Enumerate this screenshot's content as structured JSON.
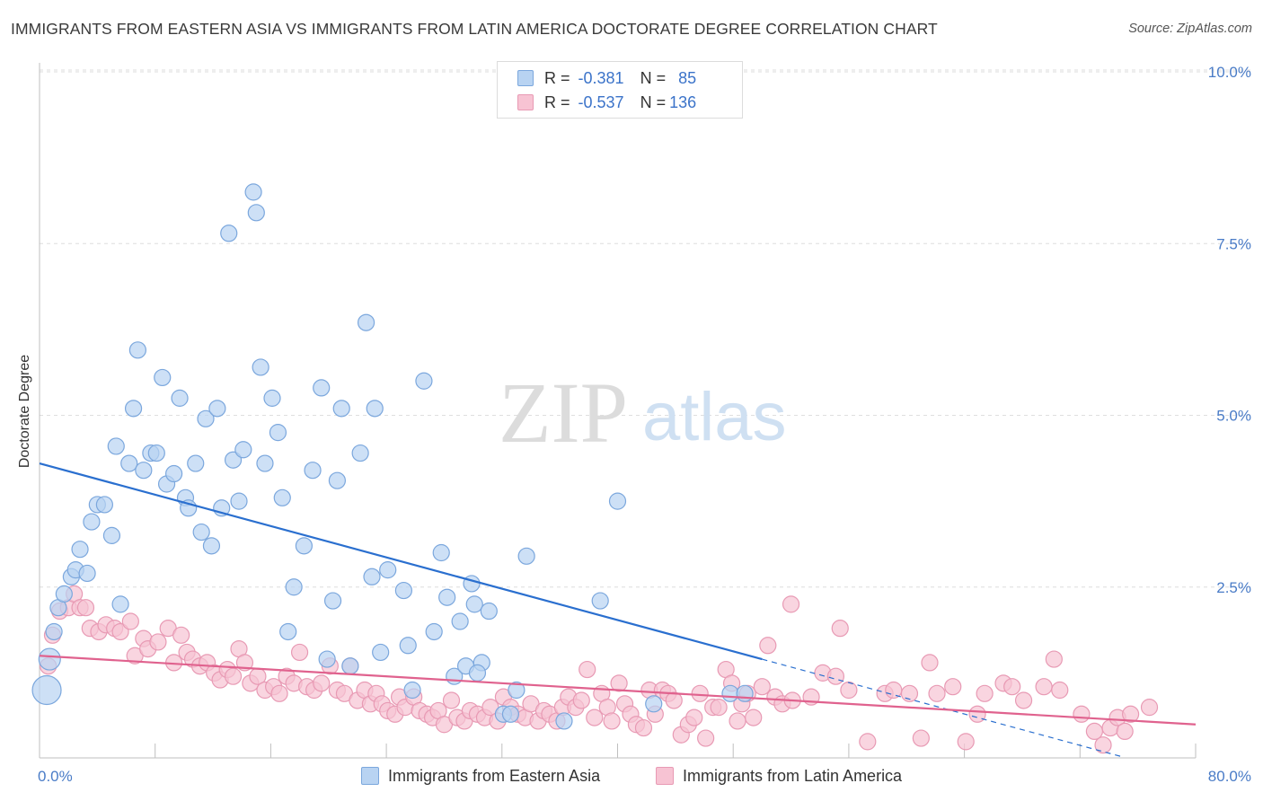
{
  "header": {
    "title": "IMMIGRANTS FROM EASTERN ASIA VS IMMIGRANTS FROM LATIN AMERICA DOCTORATE DEGREE CORRELATION CHART",
    "source": "Source: ZipAtlas.com"
  },
  "watermark": {
    "zip": "ZIP",
    "atlas": "atlas"
  },
  "legend": {
    "series": [
      {
        "r_label": "R =",
        "r_value": "-0.381",
        "n_label": "N =",
        "n_value": "85"
      },
      {
        "r_label": "R =",
        "r_value": "-0.537",
        "n_label": "N =",
        "n_value": "136"
      }
    ]
  },
  "bottom_legend": {
    "asia": "Immigrants from Eastern Asia",
    "latin": "Immigrants from Latin America"
  },
  "colors": {
    "asia_fill": "#b8d3f2",
    "asia_stroke": "#7ba7dd",
    "asia_line": "#2a6fcf",
    "latin_fill": "#f7c3d3",
    "latin_stroke": "#e89ab4",
    "latin_line": "#e0628e",
    "tick_text": "#4a7cc7",
    "grid": "#dedede"
  },
  "chart_data": {
    "type": "scatter",
    "title": "IMMIGRANTS FROM EASTERN ASIA VS IMMIGRANTS FROM LATIN AMERICA DOCTORATE DEGREE CORRELATION CHART",
    "ylabel": "Doctorate Degree",
    "xlim": [
      0,
      80
    ],
    "ylim": [
      0,
      10.5
    ],
    "x_tick_labels": [
      {
        "x": 0,
        "label": "0.0%"
      },
      {
        "x": 80,
        "label": "80.0%"
      }
    ],
    "y_tick_labels": [
      {
        "y": 2.5,
        "label": "2.5%"
      },
      {
        "y": 5.0,
        "label": "5.0%"
      },
      {
        "y": 7.5,
        "label": "7.5%"
      },
      {
        "y": 10.0,
        "label": "10.0%"
      }
    ],
    "grid": true,
    "series": [
      {
        "name": "Immigrants from Eastern Asia",
        "trend": {
          "x0": 0,
          "y0": 4.3,
          "x1": 50,
          "y1": 1.45,
          "dash_to_x": 75
        },
        "points": [
          [
            0.5,
            1.0
          ],
          [
            0.7,
            1.45
          ],
          [
            1.0,
            1.85
          ],
          [
            1.3,
            2.2
          ],
          [
            1.7,
            2.4
          ],
          [
            2.2,
            2.65
          ],
          [
            2.5,
            2.75
          ],
          [
            2.8,
            3.05
          ],
          [
            3.3,
            2.7
          ],
          [
            3.6,
            3.45
          ],
          [
            4.0,
            3.7
          ],
          [
            4.5,
            3.7
          ],
          [
            5.0,
            3.25
          ],
          [
            5.3,
            4.55
          ],
          [
            5.6,
            2.25
          ],
          [
            6.2,
            4.3
          ],
          [
            6.5,
            5.1
          ],
          [
            6.8,
            5.95
          ],
          [
            7.2,
            4.2
          ],
          [
            7.7,
            4.45
          ],
          [
            8.1,
            4.45
          ],
          [
            8.5,
            5.55
          ],
          [
            8.8,
            4.0
          ],
          [
            9.3,
            4.15
          ],
          [
            9.7,
            5.25
          ],
          [
            10.1,
            3.8
          ],
          [
            10.3,
            3.65
          ],
          [
            10.8,
            4.3
          ],
          [
            11.2,
            3.3
          ],
          [
            11.5,
            4.95
          ],
          [
            11.9,
            3.1
          ],
          [
            12.3,
            5.1
          ],
          [
            12.6,
            3.65
          ],
          [
            13.1,
            7.65
          ],
          [
            13.4,
            4.35
          ],
          [
            13.8,
            3.75
          ],
          [
            14.1,
            4.5
          ],
          [
            14.8,
            8.25
          ],
          [
            15.0,
            7.95
          ],
          [
            15.3,
            5.7
          ],
          [
            15.6,
            4.3
          ],
          [
            16.1,
            5.25
          ],
          [
            16.5,
            4.75
          ],
          [
            16.8,
            3.8
          ],
          [
            17.2,
            1.85
          ],
          [
            17.6,
            2.5
          ],
          [
            18.3,
            3.1
          ],
          [
            18.9,
            4.2
          ],
          [
            19.5,
            5.4
          ],
          [
            19.9,
            1.45
          ],
          [
            20.3,
            2.3
          ],
          [
            20.6,
            4.05
          ],
          [
            20.9,
            5.1
          ],
          [
            21.5,
            1.35
          ],
          [
            22.2,
            4.45
          ],
          [
            22.6,
            6.35
          ],
          [
            23.0,
            2.65
          ],
          [
            23.2,
            5.1
          ],
          [
            23.6,
            1.55
          ],
          [
            24.1,
            2.75
          ],
          [
            25.2,
            2.45
          ],
          [
            25.5,
            1.65
          ],
          [
            25.8,
            1.0
          ],
          [
            26.6,
            5.5
          ],
          [
            27.3,
            1.85
          ],
          [
            27.8,
            3.0
          ],
          [
            28.2,
            2.35
          ],
          [
            28.7,
            1.2
          ],
          [
            29.1,
            2.0
          ],
          [
            29.5,
            1.35
          ],
          [
            29.9,
            2.55
          ],
          [
            30.1,
            2.25
          ],
          [
            30.6,
            1.4
          ],
          [
            31.1,
            2.15
          ],
          [
            32.1,
            0.65
          ],
          [
            32.6,
            0.65
          ],
          [
            33.0,
            1.0
          ],
          [
            33.7,
            2.95
          ],
          [
            36.3,
            0.55
          ],
          [
            38.8,
            2.3
          ],
          [
            40.0,
            3.75
          ],
          [
            42.5,
            0.8
          ],
          [
            47.8,
            0.95
          ],
          [
            48.8,
            0.95
          ],
          [
            30.3,
            1.25
          ]
        ]
      },
      {
        "name": "Immigrants from Latin America",
        "trend": {
          "x0": 0,
          "y0": 1.5,
          "x1": 80,
          "y1": 0.5
        },
        "points": [
          [
            0.6,
            1.35
          ],
          [
            0.9,
            1.8
          ],
          [
            1.4,
            2.15
          ],
          [
            2.0,
            2.2
          ],
          [
            2.4,
            2.4
          ],
          [
            2.8,
            2.2
          ],
          [
            3.2,
            2.2
          ],
          [
            3.5,
            1.9
          ],
          [
            4.1,
            1.85
          ],
          [
            4.6,
            1.95
          ],
          [
            5.2,
            1.9
          ],
          [
            5.6,
            1.85
          ],
          [
            6.3,
            2.0
          ],
          [
            6.6,
            1.5
          ],
          [
            7.2,
            1.75
          ],
          [
            7.5,
            1.6
          ],
          [
            8.2,
            1.7
          ],
          [
            8.9,
            1.9
          ],
          [
            9.3,
            1.4
          ],
          [
            9.8,
            1.8
          ],
          [
            10.2,
            1.55
          ],
          [
            10.6,
            1.45
          ],
          [
            11.1,
            1.35
          ],
          [
            11.6,
            1.4
          ],
          [
            12.1,
            1.25
          ],
          [
            12.5,
            1.15
          ],
          [
            13.0,
            1.3
          ],
          [
            13.4,
            1.2
          ],
          [
            13.8,
            1.6
          ],
          [
            14.2,
            1.4
          ],
          [
            14.6,
            1.1
          ],
          [
            15.1,
            1.2
          ],
          [
            15.6,
            1.0
          ],
          [
            16.2,
            1.05
          ],
          [
            16.6,
            0.95
          ],
          [
            17.1,
            1.2
          ],
          [
            17.6,
            1.1
          ],
          [
            18.0,
            1.55
          ],
          [
            18.5,
            1.05
          ],
          [
            19.0,
            1.0
          ],
          [
            19.5,
            1.1
          ],
          [
            20.1,
            1.35
          ],
          [
            20.6,
            1.0
          ],
          [
            21.1,
            0.95
          ],
          [
            21.5,
            1.35
          ],
          [
            22.0,
            0.85
          ],
          [
            22.5,
            1.0
          ],
          [
            22.9,
            0.8
          ],
          [
            23.3,
            0.95
          ],
          [
            23.7,
            0.8
          ],
          [
            24.1,
            0.7
          ],
          [
            24.6,
            0.65
          ],
          [
            24.9,
            0.9
          ],
          [
            25.3,
            0.75
          ],
          [
            25.9,
            0.9
          ],
          [
            26.3,
            0.7
          ],
          [
            26.8,
            0.65
          ],
          [
            27.2,
            0.6
          ],
          [
            27.6,
            0.7
          ],
          [
            28.0,
            0.5
          ],
          [
            28.5,
            0.85
          ],
          [
            28.9,
            0.6
          ],
          [
            29.4,
            0.55
          ],
          [
            29.8,
            0.7
          ],
          [
            30.3,
            0.65
          ],
          [
            30.8,
            0.6
          ],
          [
            31.2,
            0.75
          ],
          [
            31.7,
            0.55
          ],
          [
            32.1,
            0.9
          ],
          [
            32.6,
            0.75
          ],
          [
            33.1,
            0.65
          ],
          [
            33.6,
            0.6
          ],
          [
            34.0,
            0.8
          ],
          [
            34.5,
            0.55
          ],
          [
            34.9,
            0.7
          ],
          [
            35.3,
            0.65
          ],
          [
            35.8,
            0.55
          ],
          [
            36.2,
            0.75
          ],
          [
            36.6,
            0.9
          ],
          [
            37.1,
            0.75
          ],
          [
            37.5,
            0.85
          ],
          [
            37.9,
            1.3
          ],
          [
            38.4,
            0.6
          ],
          [
            38.9,
            0.95
          ],
          [
            39.3,
            0.75
          ],
          [
            39.6,
            0.55
          ],
          [
            40.1,
            1.1
          ],
          [
            40.5,
            0.8
          ],
          [
            40.9,
            0.65
          ],
          [
            41.3,
            0.5
          ],
          [
            41.8,
            0.45
          ],
          [
            42.2,
            1.0
          ],
          [
            42.6,
            0.65
          ],
          [
            43.1,
            1.0
          ],
          [
            43.5,
            0.95
          ],
          [
            43.9,
            0.85
          ],
          [
            44.4,
            0.35
          ],
          [
            44.9,
            0.5
          ],
          [
            45.3,
            0.6
          ],
          [
            45.7,
            0.95
          ],
          [
            46.1,
            0.3
          ],
          [
            46.6,
            0.75
          ],
          [
            47.0,
            0.75
          ],
          [
            47.5,
            1.3
          ],
          [
            47.9,
            1.1
          ],
          [
            48.3,
            0.55
          ],
          [
            48.6,
            0.8
          ],
          [
            49.0,
            0.95
          ],
          [
            49.4,
            0.6
          ],
          [
            50.0,
            1.05
          ],
          [
            50.4,
            1.65
          ],
          [
            50.9,
            0.9
          ],
          [
            51.4,
            0.8
          ],
          [
            52.1,
            0.85
          ],
          [
            53.4,
            0.9
          ],
          [
            54.2,
            1.25
          ],
          [
            55.1,
            1.2
          ],
          [
            56.0,
            1.0
          ],
          [
            57.3,
            0.25
          ],
          [
            58.5,
            0.95
          ],
          [
            59.1,
            1.0
          ],
          [
            60.2,
            0.95
          ],
          [
            61.0,
            0.3
          ],
          [
            61.6,
            1.4
          ],
          [
            62.1,
            0.95
          ],
          [
            63.2,
            1.05
          ],
          [
            64.1,
            0.25
          ],
          [
            64.9,
            0.65
          ],
          [
            65.4,
            0.95
          ],
          [
            66.7,
            1.1
          ],
          [
            67.3,
            1.05
          ],
          [
            68.1,
            0.85
          ],
          [
            69.5,
            1.05
          ],
          [
            70.2,
            1.45
          ],
          [
            70.6,
            1.0
          ],
          [
            72.1,
            0.65
          ],
          [
            73.0,
            0.4
          ],
          [
            73.6,
            0.2
          ],
          [
            74.1,
            0.45
          ],
          [
            74.6,
            0.6
          ],
          [
            75.1,
            0.4
          ],
          [
            75.5,
            0.65
          ],
          [
            76.8,
            0.75
          ],
          [
            52.0,
            2.25
          ],
          [
            55.4,
            1.9
          ]
        ]
      }
    ]
  }
}
